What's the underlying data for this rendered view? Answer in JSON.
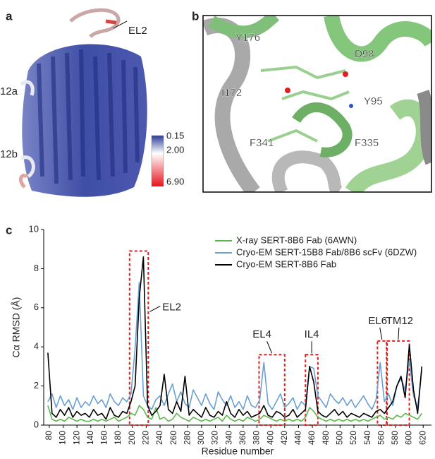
{
  "panel_a": {
    "label": "a",
    "el2": "EL2",
    "tm12a": "12a",
    "tm12b": "12b",
    "colorbar_ticks": [
      0.15,
      {
        "value": 2,
        "label": "2.00"
      },
      {
        "value": 6.9,
        "label": "6.90"
      }
    ]
  },
  "panel_b": {
    "label": "b",
    "residues": [
      "Y176",
      "D98",
      "I172",
      "Y95",
      "F341",
      "F335"
    ]
  },
  "panel_c_label": "c",
  "chart_data": {
    "type": "line",
    "xlabel": "Residue number",
    "ylabel": "Cα RMSD (Å)",
    "xlim": [
      72,
      632
    ],
    "ylim": [
      0,
      10
    ],
    "xticks": [
      80,
      100,
      120,
      140,
      160,
      180,
      200,
      220,
      240,
      260,
      280,
      300,
      320,
      340,
      360,
      380,
      400,
      420,
      440,
      460,
      480,
      500,
      520,
      540,
      560,
      580,
      600,
      620
    ],
    "yticks": [
      0,
      2,
      4,
      6,
      8,
      10
    ],
    "legend": "upper right",
    "x": [
      78,
      84,
      90,
      96,
      102,
      108,
      114,
      120,
      126,
      132,
      138,
      144,
      150,
      156,
      162,
      168,
      174,
      180,
      186,
      192,
      198,
      204,
      210,
      216,
      222,
      228,
      234,
      240,
      246,
      252,
      258,
      264,
      270,
      276,
      282,
      288,
      294,
      300,
      306,
      312,
      318,
      324,
      330,
      336,
      342,
      348,
      354,
      360,
      366,
      372,
      378,
      384,
      390,
      396,
      402,
      408,
      414,
      420,
      426,
      432,
      438,
      444,
      450,
      456,
      462,
      468,
      474,
      480,
      486,
      492,
      498,
      504,
      510,
      516,
      522,
      528,
      534,
      540,
      546,
      552,
      558,
      564,
      570,
      576,
      582,
      588,
      594,
      600,
      606,
      612,
      618
    ],
    "series": [
      {
        "name": "X-ray SERT-8B6 Fab (6AWN)",
        "color": "#5cb84a",
        "values": [
          1.0,
          0.3,
          0.2,
          0.3,
          0.2,
          0.4,
          0.3,
          0.2,
          0.3,
          0.2,
          0.2,
          0.3,
          0.2,
          0.3,
          0.2,
          0.3,
          0.4,
          0.2,
          0.3,
          0.4,
          0.6,
          0.5,
          1.0,
          0.8,
          0.4,
          0.3,
          0.9,
          0.3,
          0.4,
          0.2,
          0.3,
          0.6,
          0.4,
          0.3,
          0.2,
          0.4,
          0.3,
          0.2,
          0.3,
          0.2,
          0.3,
          0.4,
          0.2,
          0.5,
          0.3,
          0.2,
          0.3,
          0.2,
          0.4,
          0.3,
          0.2,
          0.3,
          0.5,
          0.4,
          0.3,
          0.2,
          0.3,
          0.2,
          0.3,
          0.2,
          0.3,
          0.2,
          0.4,
          0.9,
          0.7,
          0.4,
          0.3,
          0.2,
          0.3,
          0.2,
          0.3,
          0.2,
          0.3,
          0.2,
          0.3,
          0.2,
          0.3,
          0.2,
          0.3,
          0.4,
          0.5,
          0.3,
          0.4,
          0.3,
          0.5,
          0.4,
          0.6,
          0.5,
          0.4,
          0.3,
          0.6
        ]
      },
      {
        "name": "Cryo-EM SERT-15B8 Fab/8B6 scFv (6DZW)",
        "color": "#6a9fd4",
        "values": [
          1.2,
          1.6,
          0.9,
          1.5,
          1.0,
          1.3,
          0.8,
          1.4,
          0.9,
          1.2,
          1.0,
          1.5,
          1.1,
          1.3,
          0.9,
          1.6,
          1.2,
          1.0,
          1.4,
          1.2,
          1.6,
          3.9,
          7.3,
          1.5,
          1.0,
          0.8,
          1.3,
          1.5,
          1.0,
          1.6,
          2.1,
          1.2,
          1.7,
          1.1,
          0.9,
          1.8,
          1.4,
          1.0,
          1.6,
          1.1,
          0.8,
          1.7,
          1.3,
          1.0,
          1.5,
          0.9,
          1.2,
          0.8,
          1.5,
          1.0,
          0.9,
          1.3,
          3.2,
          1.1,
          0.8,
          1.2,
          1.6,
          0.9,
          1.1,
          1.4,
          0.8,
          1.2,
          1.0,
          3.0,
          2.9,
          1.5,
          1.2,
          0.9,
          1.6,
          1.3,
          1.1,
          1.4,
          1.0,
          1.3,
          0.9,
          1.2,
          1.5,
          1.1,
          0.8,
          1.3,
          3.2,
          1.2,
          1.6,
          1.0,
          2.0,
          2.4,
          1.8,
          3.3,
          1.5,
          0.9,
          2.8
        ]
      },
      {
        "name": "Cryo-EM SERT-8B6 Fab",
        "color": "#000000",
        "values": [
          3.7,
          0.6,
          0.4,
          0.8,
          0.5,
          0.9,
          0.4,
          0.7,
          0.5,
          0.6,
          0.4,
          0.8,
          0.5,
          0.6,
          0.3,
          0.9,
          0.5,
          0.4,
          0.7,
          0.6,
          1.2,
          2.0,
          6.5,
          8.6,
          1.0,
          0.5,
          0.7,
          1.0,
          2.6,
          0.8,
          0.6,
          1.2,
          0.7,
          2.5,
          0.5,
          0.8,
          0.6,
          0.4,
          0.9,
          0.5,
          0.4,
          0.7,
          0.5,
          1.2,
          0.6,
          0.4,
          0.8,
          0.5,
          0.7,
          0.4,
          0.5,
          0.6,
          1.0,
          0.5,
          0.4,
          0.7,
          0.6,
          0.4,
          0.5,
          0.8,
          0.4,
          0.6,
          0.8,
          3.0,
          2.2,
          0.7,
          0.5,
          0.4,
          0.6,
          0.8,
          0.5,
          0.7,
          0.4,
          0.6,
          0.5,
          0.4,
          0.6,
          0.5,
          0.4,
          0.7,
          0.8,
          0.6,
          0.9,
          1.2,
          2.0,
          2.5,
          1.4,
          4.1,
          1.8,
          0.6,
          3.0
        ]
      }
    ],
    "annotations": [
      {
        "text": "EL2",
        "x0": 196,
        "x1": 223,
        "y1": 8.9
      },
      {
        "text": "EL4",
        "x0": 383,
        "x1": 420,
        "y1": 3.6
      },
      {
        "text": "IL4",
        "x0": 450,
        "x1": 468,
        "y1": 3.6
      },
      {
        "text": "EL6",
        "x0": 554,
        "x1": 567,
        "y1": 4.3
      },
      {
        "text": "TM12",
        "x0": 568,
        "x1": 600,
        "y1": 4.3
      }
    ]
  }
}
